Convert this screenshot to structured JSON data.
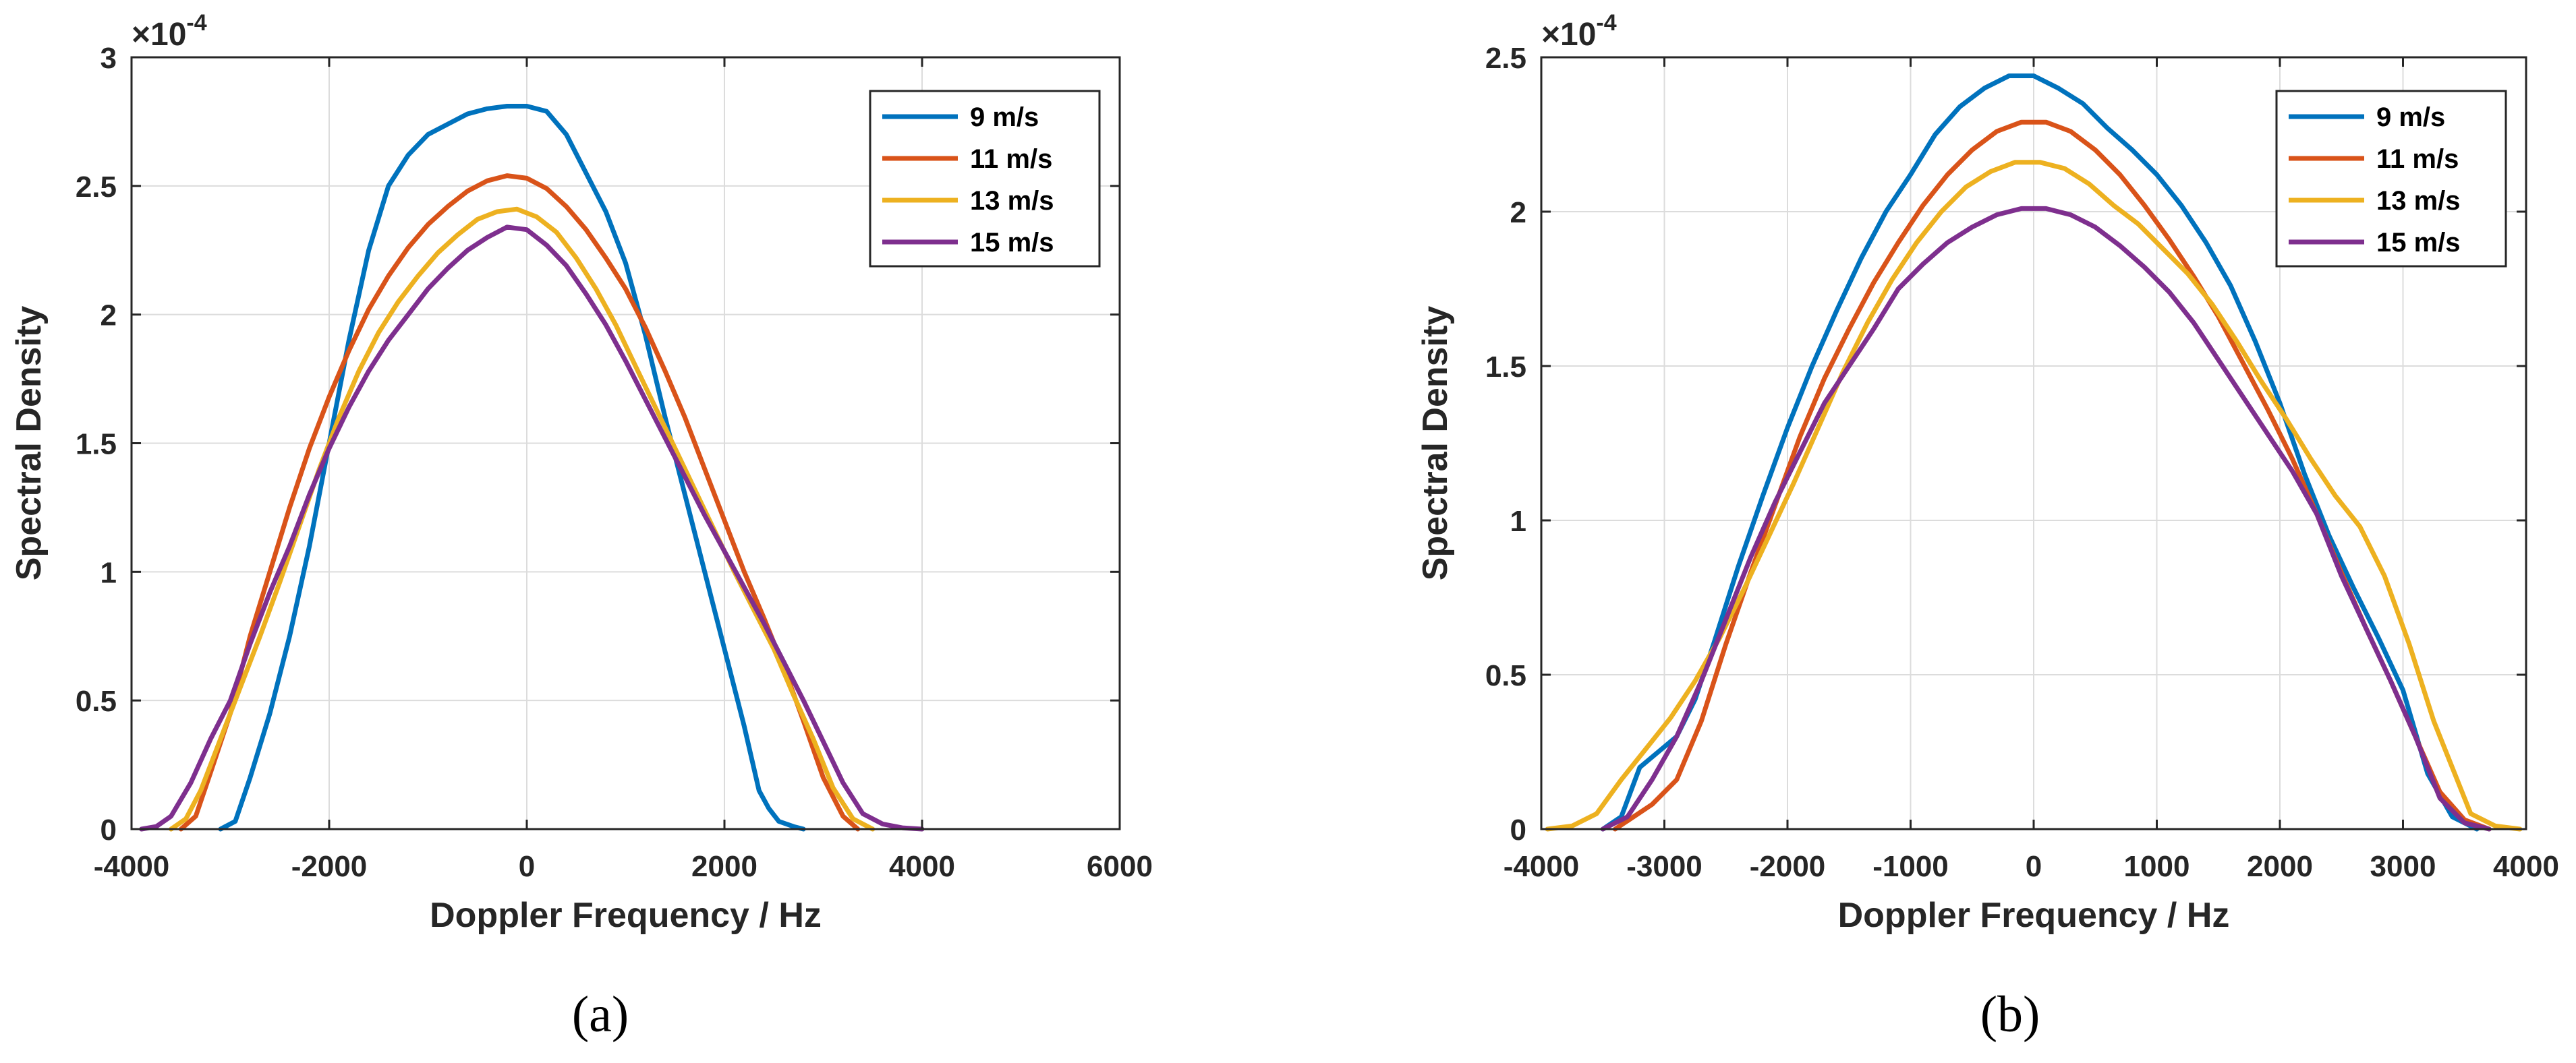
{
  "chart_data": [
    {
      "type": "line",
      "caption": "(a)",
      "xlabel": "Doppler Frequency / Hz",
      "ylabel": "Spectral Density",
      "y_exponent": "×10",
      "y_exponent_power": "-4",
      "xlim": [
        -4000,
        6000
      ],
      "ylim": [
        0,
        3
      ],
      "xticks": [
        -4000,
        -2000,
        0,
        2000,
        4000,
        6000
      ],
      "xtick_labels": [
        "-4000",
        "-2000",
        "0",
        "2000",
        "4000",
        "6000"
      ],
      "yticks": [
        0,
        0.5,
        1,
        1.5,
        2,
        2.5,
        3
      ],
      "ytick_labels": [
        "0",
        "0.5",
        "1",
        "1.5",
        "2",
        "2.5",
        "3"
      ],
      "grid": true,
      "legend_position": "top-right",
      "series": [
        {
          "name": "9 m/s",
          "color": "#0072BD",
          "x": [
            -3100,
            -2950,
            -2800,
            -2600,
            -2400,
            -2200,
            -2000,
            -1800,
            -1600,
            -1400,
            -1200,
            -1000,
            -800,
            -600,
            -400,
            -200,
            0,
            200,
            400,
            600,
            800,
            1000,
            1200,
            1400,
            1600,
            1800,
            2000,
            2200,
            2350,
            2450,
            2550,
            2700,
            2800
          ],
          "y": [
            0,
            0.03,
            0.2,
            0.45,
            0.75,
            1.1,
            1.5,
            1.9,
            2.25,
            2.5,
            2.62,
            2.7,
            2.74,
            2.78,
            2.8,
            2.81,
            2.81,
            2.79,
            2.7,
            2.55,
            2.4,
            2.2,
            1.92,
            1.6,
            1.3,
            1.0,
            0.7,
            0.4,
            0.15,
            0.08,
            0.03,
            0.01,
            0
          ]
        },
        {
          "name": "11 m/s",
          "color": "#D95319",
          "x": [
            -3500,
            -3350,
            -3200,
            -3000,
            -2800,
            -2600,
            -2400,
            -2200,
            -2000,
            -1800,
            -1600,
            -1400,
            -1200,
            -1000,
            -800,
            -600,
            -400,
            -200,
            0,
            200,
            400,
            600,
            800,
            1000,
            1200,
            1400,
            1600,
            1800,
            2000,
            2200,
            2400,
            2600,
            2800,
            3000,
            3200,
            3350
          ],
          "y": [
            0,
            0.05,
            0.22,
            0.45,
            0.75,
            1.0,
            1.25,
            1.48,
            1.68,
            1.86,
            2.02,
            2.15,
            2.26,
            2.35,
            2.42,
            2.48,
            2.52,
            2.54,
            2.53,
            2.49,
            2.42,
            2.33,
            2.22,
            2.1,
            1.95,
            1.78,
            1.6,
            1.4,
            1.2,
            1.0,
            0.82,
            0.63,
            0.42,
            0.2,
            0.05,
            0
          ]
        },
        {
          "name": "13 m/s",
          "color": "#EDB120",
          "x": [
            -3600,
            -3450,
            -3300,
            -3100,
            -2900,
            -2700,
            -2500,
            -2300,
            -2100,
            -1900,
            -1700,
            -1500,
            -1300,
            -1100,
            -900,
            -700,
            -500,
            -300,
            -100,
            100,
            300,
            500,
            700,
            900,
            1100,
            1300,
            1500,
            1700,
            1900,
            2100,
            2300,
            2500,
            2700,
            2900,
            3100,
            3300,
            3500
          ],
          "y": [
            0,
            0.04,
            0.15,
            0.35,
            0.55,
            0.75,
            0.96,
            1.18,
            1.4,
            1.6,
            1.78,
            1.93,
            2.05,
            2.15,
            2.24,
            2.31,
            2.37,
            2.4,
            2.41,
            2.38,
            2.32,
            2.22,
            2.1,
            1.96,
            1.8,
            1.64,
            1.48,
            1.32,
            1.16,
            1.0,
            0.85,
            0.7,
            0.52,
            0.35,
            0.16,
            0.04,
            0
          ]
        },
        {
          "name": "15 m/s",
          "color": "#7E2F8E",
          "x": [
            -3900,
            -3750,
            -3600,
            -3400,
            -3200,
            -3000,
            -2800,
            -2600,
            -2400,
            -2200,
            -2000,
            -1800,
            -1600,
            -1400,
            -1200,
            -1000,
            -800,
            -600,
            -400,
            -200,
            0,
            200,
            400,
            600,
            800,
            1000,
            1200,
            1400,
            1600,
            1800,
            2000,
            2200,
            2400,
            2600,
            2800,
            3000,
            3200,
            3400,
            3600,
            3800,
            4000
          ],
          "y": [
            0,
            0.01,
            0.05,
            0.18,
            0.35,
            0.5,
            0.72,
            0.92,
            1.1,
            1.3,
            1.48,
            1.64,
            1.78,
            1.9,
            2.0,
            2.1,
            2.18,
            2.25,
            2.3,
            2.34,
            2.33,
            2.27,
            2.19,
            2.08,
            1.96,
            1.82,
            1.67,
            1.52,
            1.37,
            1.22,
            1.08,
            0.94,
            0.8,
            0.65,
            0.5,
            0.34,
            0.18,
            0.06,
            0.02,
            0.005,
            0
          ]
        }
      ]
    },
    {
      "type": "line",
      "caption": "(b)",
      "xlabel": "Doppler Frequency / Hz",
      "ylabel": "Spectral Density",
      "y_exponent": "×10",
      "y_exponent_power": "-4",
      "xlim": [
        -4000,
        4000
      ],
      "ylim": [
        0,
        2.5
      ],
      "xticks": [
        -4000,
        -3000,
        -2000,
        -1000,
        0,
        1000,
        2000,
        3000,
        4000
      ],
      "xtick_labels": [
        "-4000",
        "-3000",
        "-2000",
        "-1000",
        "0",
        "1000",
        "2000",
        "3000",
        "4000"
      ],
      "yticks": [
        0,
        0.5,
        1,
        1.5,
        2,
        2.5
      ],
      "ytick_labels": [
        "0",
        "0.5",
        "1",
        "1.5",
        "2",
        "2.5"
      ],
      "grid": true,
      "legend_position": "top-right",
      "series": [
        {
          "name": "9 m/s",
          "color": "#0072BD",
          "x": [
            -3500,
            -3350,
            -3200,
            -3050,
            -2900,
            -2750,
            -2600,
            -2400,
            -2200,
            -2000,
            -1800,
            -1600,
            -1400,
            -1200,
            -1000,
            -800,
            -600,
            -400,
            -200,
            0,
            200,
            400,
            600,
            800,
            1000,
            1200,
            1400,
            1600,
            1800,
            2000,
            2200,
            2400,
            2600,
            2800,
            3000,
            3200,
            3400,
            3600
          ],
          "y": [
            0,
            0.04,
            0.2,
            0.25,
            0.3,
            0.42,
            0.6,
            0.85,
            1.08,
            1.3,
            1.5,
            1.68,
            1.85,
            2.0,
            2.12,
            2.25,
            2.34,
            2.4,
            2.44,
            2.44,
            2.4,
            2.35,
            2.27,
            2.2,
            2.12,
            2.02,
            1.9,
            1.76,
            1.58,
            1.38,
            1.15,
            0.95,
            0.78,
            0.62,
            0.45,
            0.18,
            0.04,
            0
          ]
        },
        {
          "name": "11 m/s",
          "color": "#D95319",
          "x": [
            -3400,
            -3250,
            -3100,
            -2900,
            -2700,
            -2500,
            -2300,
            -2100,
            -1900,
            -1700,
            -1500,
            -1300,
            -1100,
            -900,
            -700,
            -500,
            -300,
            -100,
            100,
            300,
            500,
            700,
            900,
            1100,
            1300,
            1500,
            1700,
            1900,
            2100,
            2300,
            2500,
            2700,
            2900,
            3100,
            3300,
            3500,
            3700
          ],
          "y": [
            0,
            0.04,
            0.08,
            0.16,
            0.35,
            0.6,
            0.83,
            1.05,
            1.27,
            1.46,
            1.62,
            1.77,
            1.9,
            2.02,
            2.12,
            2.2,
            2.26,
            2.29,
            2.29,
            2.26,
            2.2,
            2.12,
            2.02,
            1.91,
            1.79,
            1.66,
            1.51,
            1.36,
            1.2,
            1.02,
            0.83,
            0.65,
            0.48,
            0.3,
            0.12,
            0.03,
            0
          ]
        },
        {
          "name": "13 m/s",
          "color": "#EDB120",
          "x": [
            -3950,
            -3750,
            -3550,
            -3350,
            -3150,
            -2950,
            -2750,
            -2550,
            -2350,
            -2150,
            -1950,
            -1750,
            -1550,
            -1350,
            -1150,
            -950,
            -750,
            -550,
            -350,
            -150,
            50,
            250,
            450,
            650,
            850,
            1050,
            1250,
            1450,
            1650,
            1850,
            2050,
            2250,
            2450,
            2650,
            2850,
            3050,
            3250,
            3400,
            3550,
            3750,
            3950
          ],
          "y": [
            0,
            0.01,
            0.05,
            0.16,
            0.26,
            0.36,
            0.48,
            0.62,
            0.78,
            0.95,
            1.12,
            1.3,
            1.48,
            1.64,
            1.78,
            1.9,
            2.0,
            2.08,
            2.13,
            2.16,
            2.16,
            2.14,
            2.09,
            2.02,
            1.96,
            1.88,
            1.8,
            1.7,
            1.58,
            1.45,
            1.33,
            1.2,
            1.08,
            0.98,
            0.82,
            0.6,
            0.35,
            0.2,
            0.05,
            0.01,
            0
          ]
        },
        {
          "name": "15 m/s",
          "color": "#7E2F8E",
          "x": [
            -3500,
            -3300,
            -3100,
            -2900,
            -2700,
            -2500,
            -2300,
            -2100,
            -1900,
            -1700,
            -1500,
            -1300,
            -1100,
            -900,
            -700,
            -500,
            -300,
            -100,
            100,
            300,
            500,
            700,
            900,
            1100,
            1300,
            1500,
            1700,
            1900,
            2100,
            2300,
            2500,
            2700,
            2900,
            3100,
            3300,
            3500,
            3700
          ],
          "y": [
            0,
            0.04,
            0.16,
            0.3,
            0.48,
            0.68,
            0.88,
            1.06,
            1.22,
            1.38,
            1.5,
            1.62,
            1.75,
            1.83,
            1.9,
            1.95,
            1.99,
            2.01,
            2.01,
            1.99,
            1.95,
            1.89,
            1.82,
            1.74,
            1.64,
            1.52,
            1.4,
            1.28,
            1.16,
            1.02,
            0.82,
            0.65,
            0.48,
            0.3,
            0.1,
            0.02,
            0
          ]
        }
      ]
    }
  ]
}
